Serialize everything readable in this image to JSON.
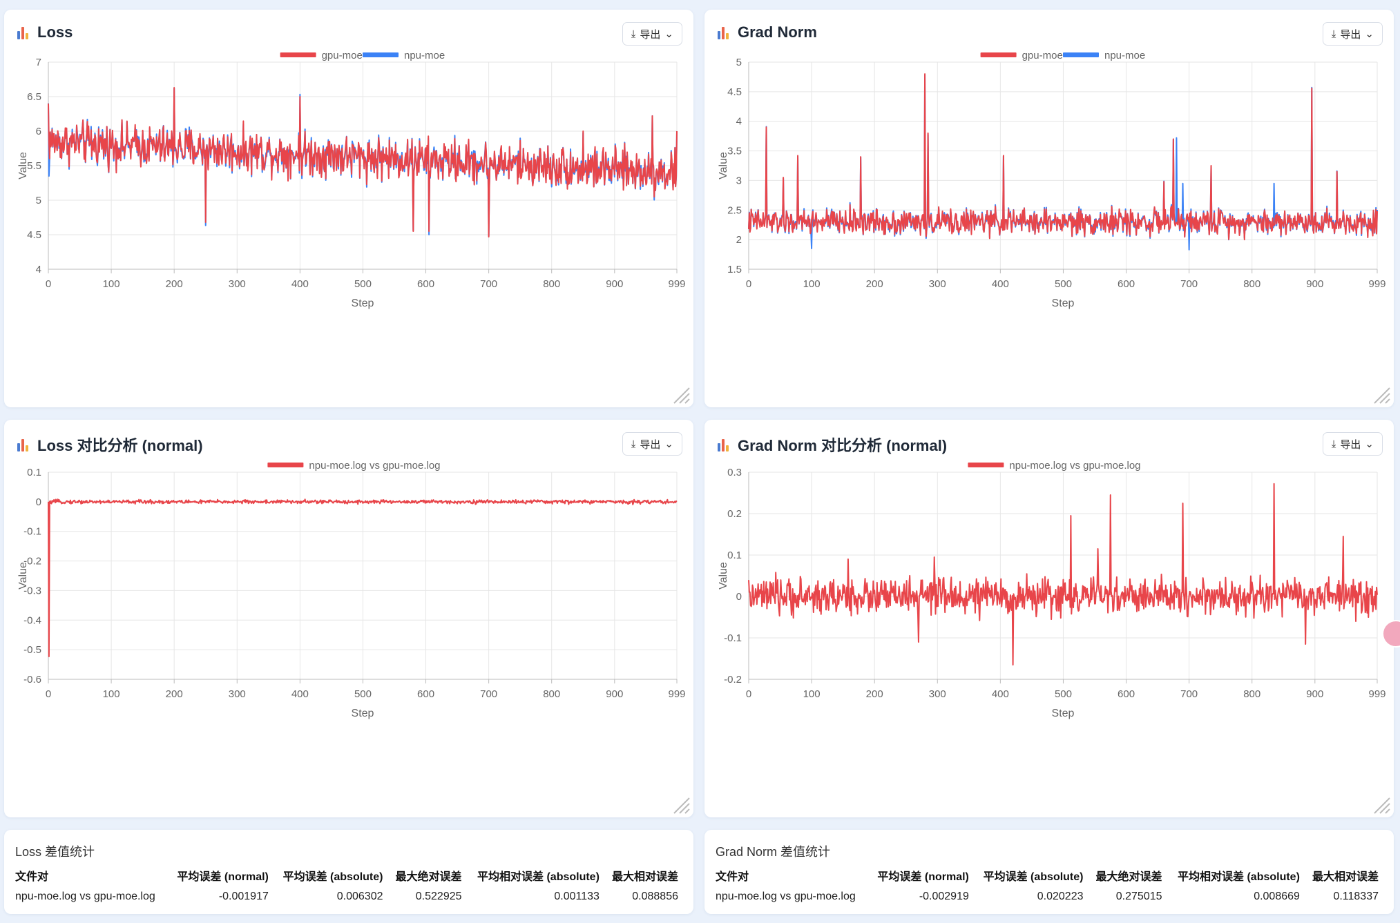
{
  "ui": {
    "export_label": "导出",
    "colors": {
      "gpu": "#e8454a",
      "npu": "#3b82f6",
      "diff": "#e8454a",
      "grid": "#e6e6e6",
      "axis": "#999999"
    }
  },
  "cards": [
    {
      "title": "Loss"
    },
    {
      "title": "Grad Norm"
    },
    {
      "title": "Loss 对比分析 (normal)"
    },
    {
      "title": "Grad Norm 对比分析 (normal)"
    }
  ],
  "chart_data": [
    {
      "type": "line",
      "title": "Loss",
      "xlabel": "Step",
      "ylabel": "Value",
      "xlim": [
        0,
        999
      ],
      "xticks": [
        "0",
        "100",
        "200",
        "300",
        "400",
        "500",
        "600",
        "700",
        "800",
        "900",
        "999"
      ],
      "ylim": [
        4,
        7
      ],
      "yticks": [
        "4",
        "4.5",
        "5",
        "5.5",
        "6",
        "6.5",
        "7"
      ],
      "legend": "top-center",
      "grid": true,
      "series": [
        {
          "name": "gpu-moe",
          "color": "#e8454a",
          "n": 1000,
          "base_start": 5.85,
          "base_end": 5.4,
          "noise": 0.28,
          "spikes": [
            [
              0,
              6.4
            ],
            [
              200,
              6.63
            ],
            [
              250,
              4.68
            ],
            [
              400,
              6.5
            ],
            [
              455,
              5.8
            ],
            [
              580,
              4.55
            ],
            [
              605,
              4.55
            ],
            [
              700,
              4.47
            ],
            [
              850,
              6.0
            ],
            [
              960,
              6.22
            ],
            [
              999,
              6.0
            ]
          ]
        },
        {
          "name": "npu-moe",
          "color": "#3b82f6",
          "n": 1000,
          "base_start": 5.85,
          "base_end": 5.4,
          "noise": 0.28,
          "spikes": [
            [
              1,
              5.35
            ],
            [
              200,
              6.62
            ],
            [
              700,
              4.48
            ]
          ]
        }
      ]
    },
    {
      "type": "line",
      "title": "Grad Norm",
      "xlabel": "Step",
      "ylabel": "Value",
      "xlim": [
        0,
        999
      ],
      "xticks": [
        "0",
        "100",
        "200",
        "300",
        "400",
        "500",
        "600",
        "700",
        "800",
        "900",
        "999"
      ],
      "ylim": [
        1.5,
        5
      ],
      "yticks": [
        "1.5",
        "2",
        "2.5",
        "3",
        "3.5",
        "4",
        "4.5",
        "5"
      ],
      "legend": "top-center",
      "grid": true,
      "series": [
        {
          "name": "gpu-moe",
          "color": "#e8454a",
          "n": 1000,
          "base_start": 2.3,
          "base_end": 2.3,
          "noise": 0.2,
          "spikes": [
            [
              28,
              3.9
            ],
            [
              55,
              3.05
            ],
            [
              78,
              3.42
            ],
            [
              178,
              3.4
            ],
            [
              280,
              4.8
            ],
            [
              285,
              3.8
            ],
            [
              405,
              3.42
            ],
            [
              660,
              2.98
            ],
            [
              675,
              3.7
            ],
            [
              735,
              3.25
            ],
            [
              895,
              4.56
            ],
            [
              935,
              3.15
            ]
          ]
        },
        {
          "name": "npu-moe",
          "color": "#3b82f6",
          "n": 1000,
          "base_start": 2.3,
          "base_end": 2.3,
          "noise": 0.2,
          "spikes": [
            [
              100,
              1.85
            ],
            [
              680,
              3.72
            ],
            [
              690,
              2.95
            ],
            [
              835,
              2.95
            ],
            [
              700,
              1.83
            ]
          ]
        }
      ]
    },
    {
      "type": "line",
      "title": "Loss 对比分析 (normal)",
      "xlabel": "Step",
      "ylabel": "Value",
      "xlim": [
        0,
        999
      ],
      "xticks": [
        "0",
        "100",
        "200",
        "300",
        "400",
        "500",
        "600",
        "700",
        "800",
        "900",
        "999"
      ],
      "ylim": [
        -0.6,
        0.1
      ],
      "yticks": [
        "-0.6",
        "-0.5",
        "-0.4",
        "-0.3",
        "-0.2",
        "-0.1",
        "0",
        "0.1"
      ],
      "legend": "top-center",
      "grid": true,
      "series": [
        {
          "name": "npu-moe.log vs gpu-moe.log",
          "color": "#e8454a",
          "n": 1000,
          "base_start": 0.0,
          "base_end": 0.0,
          "noise": 0.006,
          "spikes": [
            [
              0,
              0.0
            ],
            [
              1,
              -0.522925
            ],
            [
              2,
              0.0
            ]
          ]
        }
      ]
    },
    {
      "type": "line",
      "title": "Grad Norm 对比分析 (normal)",
      "xlabel": "Step",
      "ylabel": "Value",
      "xlim": [
        0,
        999
      ],
      "xticks": [
        "0",
        "100",
        "200",
        "300",
        "400",
        "500",
        "600",
        "700",
        "800",
        "900",
        "999"
      ],
      "ylim": [
        -0.2,
        0.3
      ],
      "yticks": [
        "-0.2",
        "-0.1",
        "0",
        "0.1",
        "0.2",
        "0.3"
      ],
      "legend": "top-center",
      "grid": true,
      "series": [
        {
          "name": "npu-moe.log vs gpu-moe.log",
          "color": "#e8454a",
          "n": 1000,
          "base_start": 0.0,
          "base_end": 0.0,
          "noise": 0.04,
          "spikes": [
            [
              158,
              0.09
            ],
            [
              270,
              -0.11
            ],
            [
              295,
              0.095
            ],
            [
              420,
              -0.165
            ],
            [
              512,
              0.195
            ],
            [
              555,
              0.115
            ],
            [
              575,
              0.245
            ],
            [
              690,
              0.225
            ],
            [
              835,
              0.272
            ],
            [
              885,
              -0.115
            ],
            [
              945,
              0.145
            ],
            [
              965,
              -0.06
            ]
          ]
        }
      ]
    }
  ],
  "stats": [
    {
      "title": "Loss 差值统计",
      "headers": [
        "文件对",
        "平均误差 (normal)",
        "平均误差 (absolute)",
        "最大绝对误差",
        "平均相对误差 (absolute)",
        "最大相对误差"
      ],
      "rows": [
        [
          "npu-moe.log vs gpu-moe.log",
          "-0.001917",
          "0.006302",
          "0.522925",
          "0.001133",
          "0.088856"
        ]
      ]
    },
    {
      "title": "Grad Norm 差值统计",
      "headers": [
        "文件对",
        "平均误差 (normal)",
        "平均误差 (absolute)",
        "最大绝对误差",
        "平均相对误差 (absolute)",
        "最大相对误差"
      ],
      "rows": [
        [
          "npu-moe.log vs gpu-moe.log",
          "-0.002919",
          "0.020223",
          "0.275015",
          "0.008669",
          "0.118337"
        ]
      ]
    }
  ]
}
